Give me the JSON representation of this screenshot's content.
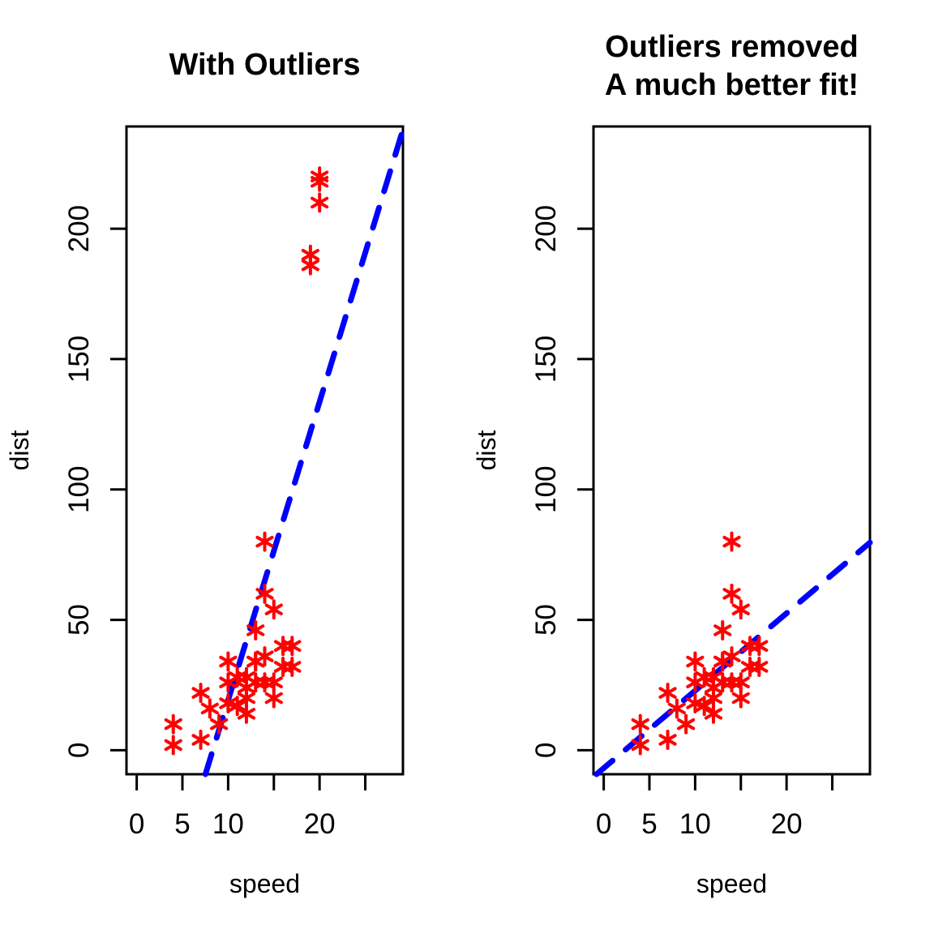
{
  "figure": {
    "background": "#ffffff",
    "text_color": "#000000"
  },
  "chart_data": [
    {
      "id": "left",
      "type": "scatter",
      "title": "With Outliers",
      "xlabel": "speed",
      "ylabel": "dist",
      "xlim": [
        0,
        28
      ],
      "ylim": [
        0,
        230
      ],
      "grid": false,
      "point_symbol": "*",
      "point_color": "#FF0000",
      "xticks": [
        {
          "value": 0,
          "label": "0"
        },
        {
          "value": 5,
          "label": "5"
        },
        {
          "value": 10,
          "label": "10"
        },
        {
          "value": 15,
          "label": ""
        },
        {
          "value": 20,
          "label": "20"
        },
        {
          "value": 25,
          "label": ""
        }
      ],
      "yticks": [
        {
          "value": 0,
          "label": "0"
        },
        {
          "value": 50,
          "label": "50"
        },
        {
          "value": 100,
          "label": "100"
        },
        {
          "value": 150,
          "label": "150"
        },
        {
          "value": 200,
          "label": "200"
        }
      ],
      "points": [
        [
          4,
          2
        ],
        [
          4,
          10
        ],
        [
          7,
          4
        ],
        [
          7,
          22
        ],
        [
          8,
          16
        ],
        [
          9,
          10
        ],
        [
          10,
          18
        ],
        [
          10,
          26
        ],
        [
          10,
          34
        ],
        [
          11,
          17
        ],
        [
          11,
          28
        ],
        [
          12,
          14
        ],
        [
          12,
          20
        ],
        [
          12,
          24
        ],
        [
          12,
          28
        ],
        [
          13,
          26
        ],
        [
          13,
          34
        ],
        [
          13,
          34
        ],
        [
          13,
          46
        ],
        [
          14,
          26
        ],
        [
          14,
          36
        ],
        [
          14,
          60
        ],
        [
          14,
          80
        ],
        [
          15,
          20
        ],
        [
          15,
          26
        ],
        [
          15,
          54
        ],
        [
          16,
          32
        ],
        [
          16,
          40
        ],
        [
          17,
          32
        ],
        [
          17,
          40
        ],
        [
          19,
          190
        ],
        [
          19,
          186
        ],
        [
          20,
          210
        ],
        [
          20,
          220
        ],
        [
          20,
          218
        ]
      ],
      "fit_line": {
        "color": "#0000FF",
        "style": "dashed",
        "slope": 11.44,
        "intercept": -95.19
      }
    },
    {
      "id": "right",
      "type": "scatter",
      "title": "Outliers removed\nA much better fit!",
      "xlabel": "speed",
      "ylabel": "dist",
      "xlim": [
        0,
        28
      ],
      "ylim": [
        0,
        230
      ],
      "grid": false,
      "point_symbol": "*",
      "point_color": "#FF0000",
      "xticks": [
        {
          "value": 0,
          "label": "0"
        },
        {
          "value": 5,
          "label": "5"
        },
        {
          "value": 10,
          "label": "10"
        },
        {
          "value": 15,
          "label": ""
        },
        {
          "value": 20,
          "label": "20"
        },
        {
          "value": 25,
          "label": ""
        }
      ],
      "yticks": [
        {
          "value": 0,
          "label": "0"
        },
        {
          "value": 50,
          "label": "50"
        },
        {
          "value": 100,
          "label": "100"
        },
        {
          "value": 150,
          "label": "150"
        },
        {
          "value": 200,
          "label": "200"
        }
      ],
      "points": [
        [
          4,
          2
        ],
        [
          4,
          10
        ],
        [
          7,
          4
        ],
        [
          7,
          22
        ],
        [
          8,
          16
        ],
        [
          9,
          10
        ],
        [
          10,
          18
        ],
        [
          10,
          26
        ],
        [
          10,
          34
        ],
        [
          11,
          17
        ],
        [
          11,
          28
        ],
        [
          12,
          14
        ],
        [
          12,
          20
        ],
        [
          12,
          24
        ],
        [
          12,
          28
        ],
        [
          13,
          26
        ],
        [
          13,
          34
        ],
        [
          13,
          34
        ],
        [
          13,
          46
        ],
        [
          14,
          26
        ],
        [
          14,
          36
        ],
        [
          14,
          60
        ],
        [
          14,
          80
        ],
        [
          15,
          20
        ],
        [
          15,
          26
        ],
        [
          15,
          54
        ],
        [
          16,
          32
        ],
        [
          16,
          40
        ],
        [
          17,
          32
        ],
        [
          17,
          40
        ]
      ],
      "fit_line": {
        "color": "#0000FF",
        "style": "dashed",
        "slope": 2.97,
        "intercept": -6.86
      }
    }
  ]
}
